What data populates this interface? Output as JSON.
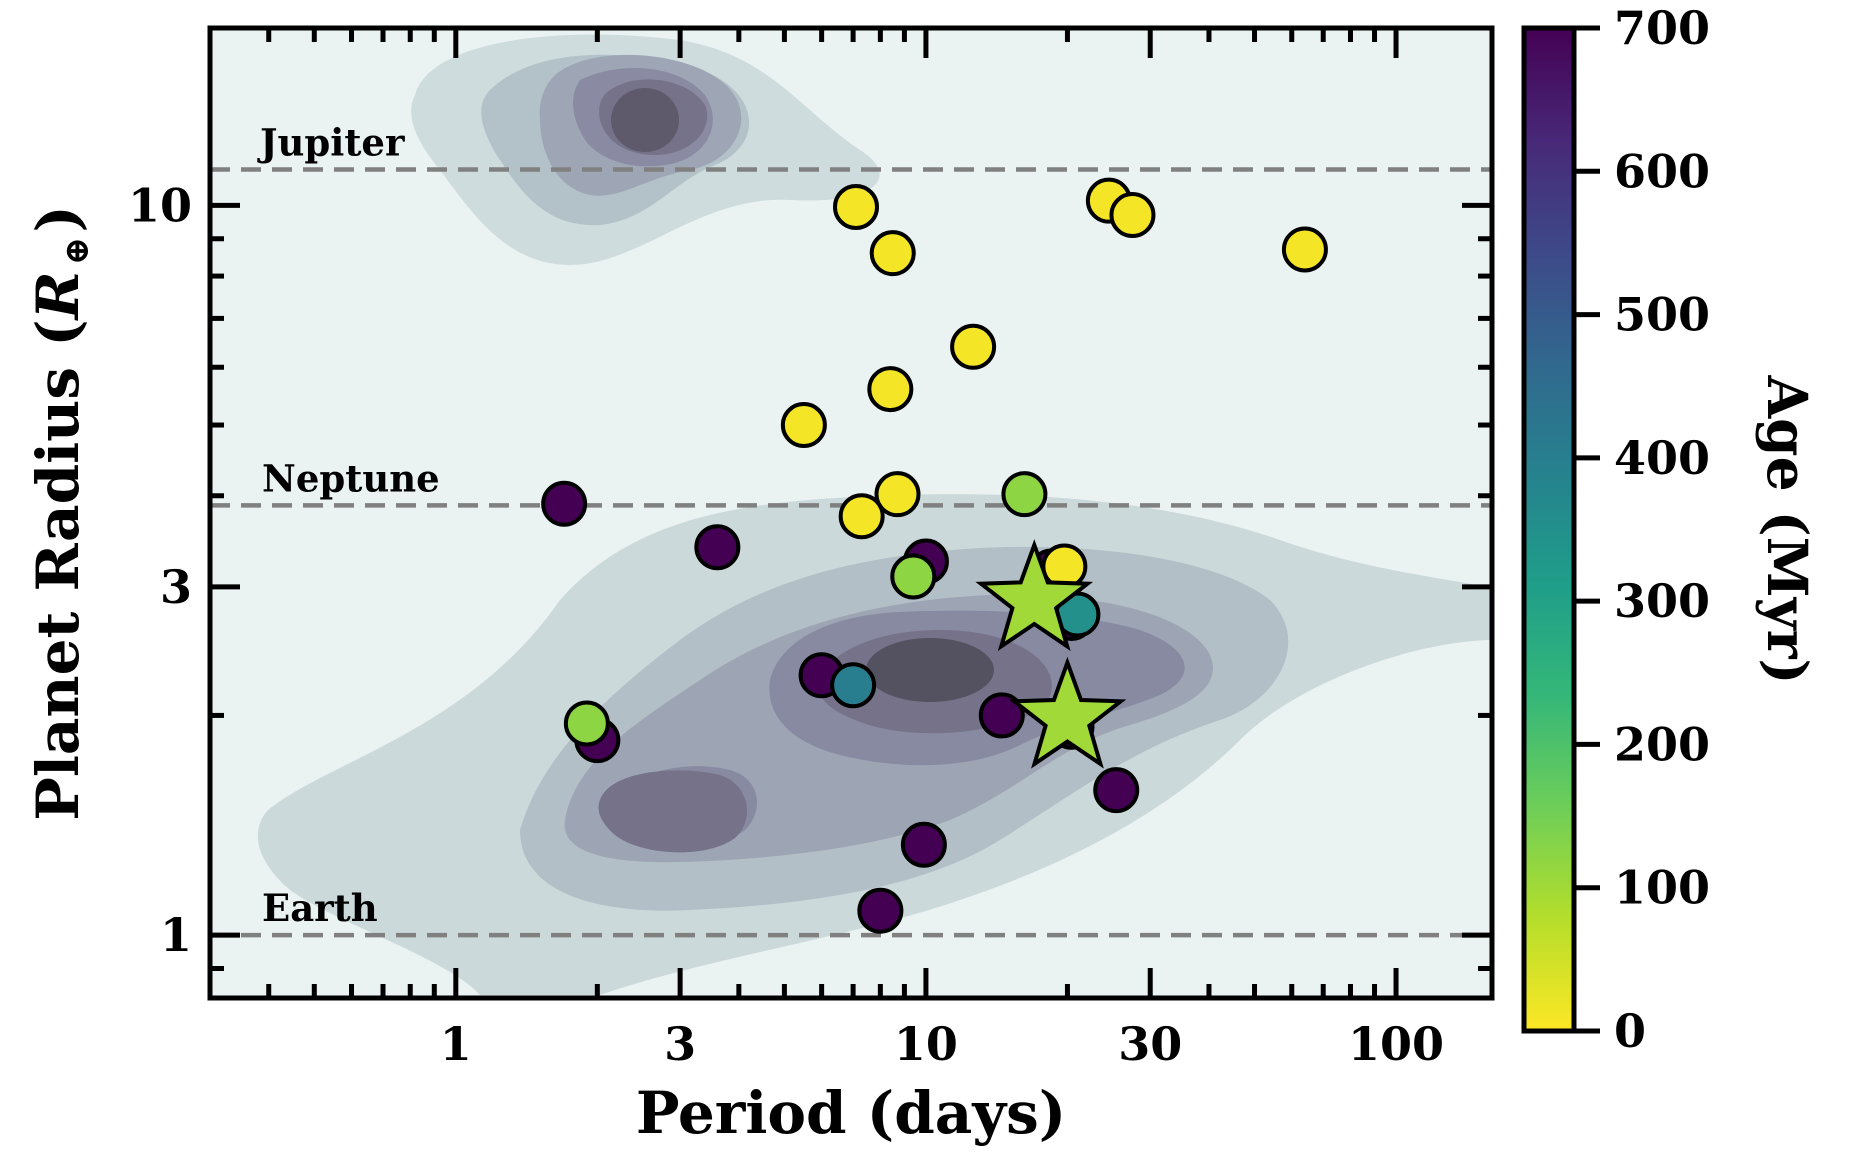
{
  "chart_data": {
    "type": "scatter",
    "xlabel": "Period (days)",
    "ylabel_main": "Planet Radius (",
    "ylabel_symbol": "R",
    "ylabel_sub": "⊕",
    "ylabel_close": ")",
    "x_scale": "log",
    "y_scale": "log",
    "xlim": [
      0.3,
      160
    ],
    "ylim": [
      0.82,
      17.5
    ],
    "xticks": [
      {
        "value": 1,
        "label": "1"
      },
      {
        "value": 3,
        "label": "3"
      },
      {
        "value": 10,
        "label": "10"
      },
      {
        "value": 30,
        "label": "30"
      },
      {
        "value": 100,
        "label": "100"
      }
    ],
    "yticks": [
      {
        "value": 1,
        "label": "1"
      },
      {
        "value": 3,
        "label": "3"
      },
      {
        "value": 10,
        "label": "10"
      }
    ],
    "reference_lines": [
      {
        "label": "Jupiter",
        "y": 11.2
      },
      {
        "label": "Neptune",
        "y": 3.88
      },
      {
        "label": "Earth",
        "y": 1.0
      }
    ],
    "colorbar": {
      "label": "Age (Myr)",
      "range": [
        0,
        700
      ],
      "ticks": [
        "0",
        "100",
        "200",
        "300",
        "400",
        "500",
        "600",
        "700"
      ],
      "colormap": [
        "#fde725",
        "#b5de2b",
        "#6ece58",
        "#35b779",
        "#1f9e89",
        "#26828e",
        "#31688e",
        "#3e4989",
        "#482878",
        "#440154"
      ]
    },
    "background_density": "kernel density contours of known planets (grey-blue shades)",
    "points": [
      {
        "x": 7.1,
        "y": 9.95,
        "age": 10,
        "marker": "circle"
      },
      {
        "x": 24.5,
        "y": 10.15,
        "age": 10,
        "marker": "circle"
      },
      {
        "x": 27.5,
        "y": 9.7,
        "age": 10,
        "marker": "circle"
      },
      {
        "x": 8.5,
        "y": 8.6,
        "age": 10,
        "marker": "circle"
      },
      {
        "x": 64,
        "y": 8.7,
        "age": 10,
        "marker": "circle"
      },
      {
        "x": 12.6,
        "y": 6.4,
        "age": 10,
        "marker": "circle"
      },
      {
        "x": 8.4,
        "y": 5.6,
        "age": 10,
        "marker": "circle"
      },
      {
        "x": 5.5,
        "y": 5.0,
        "age": 10,
        "marker": "circle"
      },
      {
        "x": 8.7,
        "y": 4.02,
        "age": 10,
        "marker": "circle"
      },
      {
        "x": 7.3,
        "y": 3.75,
        "age": 10,
        "marker": "circle"
      },
      {
        "x": 19.7,
        "y": 3.2,
        "age": 10,
        "marker": "circle"
      },
      {
        "x": 16.2,
        "y": 4.02,
        "age": 120,
        "marker": "circle"
      },
      {
        "x": 9.4,
        "y": 3.1,
        "age": 120,
        "marker": "circle"
      },
      {
        "x": 1.9,
        "y": 1.95,
        "age": 120,
        "marker": "circle"
      },
      {
        "x": 1.7,
        "y": 3.9,
        "age": 700,
        "marker": "circle"
      },
      {
        "x": 3.6,
        "y": 3.4,
        "age": 700,
        "marker": "circle"
      },
      {
        "x": 10.0,
        "y": 3.25,
        "age": 700,
        "marker": "circle"
      },
      {
        "x": 18.5,
        "y": 3.15,
        "age": 700,
        "marker": "circle"
      },
      {
        "x": 20.4,
        "y": 2.72,
        "age": 700,
        "marker": "circle"
      },
      {
        "x": 21.0,
        "y": 2.75,
        "age": 350,
        "marker": "circle"
      },
      {
        "x": 6.0,
        "y": 2.27,
        "age": 700,
        "marker": "circle"
      },
      {
        "x": 7.0,
        "y": 2.2,
        "age": 400,
        "marker": "circle"
      },
      {
        "x": 14.5,
        "y": 2.0,
        "age": 700,
        "marker": "circle"
      },
      {
        "x": 20.4,
        "y": 1.93,
        "age": 700,
        "marker": "circle"
      },
      {
        "x": 2.0,
        "y": 1.85,
        "age": 700,
        "marker": "circle"
      },
      {
        "x": 25.4,
        "y": 1.58,
        "age": 700,
        "marker": "circle"
      },
      {
        "x": 9.9,
        "y": 1.33,
        "age": 700,
        "marker": "circle"
      },
      {
        "x": 8.0,
        "y": 1.08,
        "age": 700,
        "marker": "circle"
      },
      {
        "x": 17.0,
        "y": 2.87,
        "age": 100,
        "marker": "star"
      },
      {
        "x": 20.0,
        "y": 1.98,
        "age": 100,
        "marker": "star"
      }
    ]
  }
}
